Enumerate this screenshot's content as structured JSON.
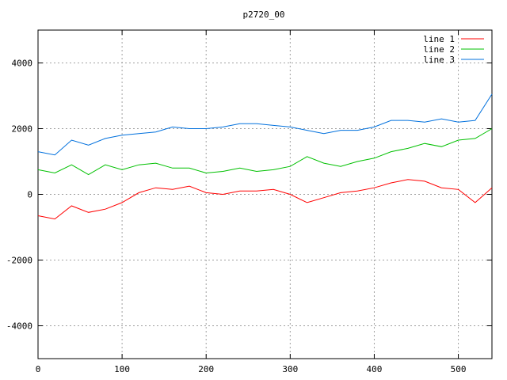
{
  "chart_data": {
    "type": "line",
    "title": "p2720_00",
    "xlabel": "",
    "ylabel": "",
    "xlim": [
      0,
      540
    ],
    "ylim": [
      -5000,
      5000
    ],
    "xticks": [
      0,
      100,
      200,
      300,
      400,
      500
    ],
    "yticks": [
      -4000,
      -2000,
      0,
      2000,
      4000
    ],
    "grid": true,
    "legend_position": "top-right",
    "x": [
      0,
      20,
      40,
      60,
      80,
      100,
      120,
      140,
      160,
      180,
      200,
      220,
      240,
      260,
      280,
      300,
      320,
      340,
      360,
      380,
      400,
      420,
      440,
      460,
      480,
      500,
      520,
      540
    ],
    "series": [
      {
        "name": "line 1",
        "color": "#ff0000",
        "values": [
          -650,
          -750,
          -350,
          -550,
          -450,
          -250,
          50,
          200,
          150,
          250,
          50,
          0,
          100,
          100,
          150,
          0,
          -250,
          -100,
          50,
          100,
          200,
          350,
          450,
          400,
          200,
          150,
          -250,
          200
        ]
      },
      {
        "name": "line 2",
        "color": "#00c000",
        "values": [
          750,
          650,
          900,
          600,
          900,
          750,
          900,
          950,
          800,
          800,
          650,
          700,
          800,
          700,
          750,
          850,
          1150,
          950,
          850,
          1000,
          1100,
          1300,
          1400,
          1550,
          1450,
          1650,
          1700,
          2000
        ]
      },
      {
        "name": "line 3",
        "color": "#0070dd",
        "values": [
          1300,
          1200,
          1650,
          1500,
          1700,
          1800,
          1850,
          1900,
          2050,
          2000,
          2000,
          2050,
          2150,
          2150,
          2100,
          2050,
          1950,
          1850,
          1950,
          1950,
          2050,
          2250,
          2250,
          2200,
          2300,
          2200,
          2250,
          3050
        ]
      }
    ]
  }
}
